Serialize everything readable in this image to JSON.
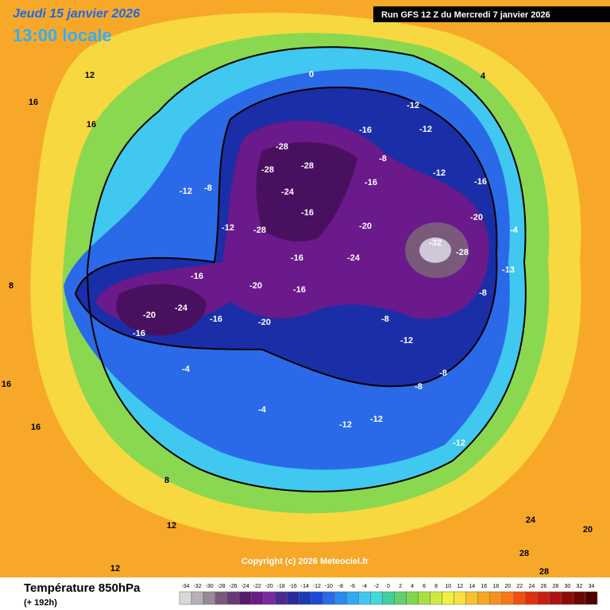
{
  "header": {
    "date": "Jeudi 15 janvier 2026",
    "time": "13:00 locale",
    "run": "Run GFS 12 Z du Mercredi 7 janvier 2026"
  },
  "footer": {
    "title": "Température 850hPa",
    "lead": "(+ 192h)",
    "copyright": "Copyright (c) 2026 Meteociel.fr"
  },
  "legend": {
    "ticks": [
      -34,
      -32,
      -30,
      -28,
      -26,
      -24,
      -22,
      -20,
      -18,
      -16,
      -14,
      -12,
      -10,
      -8,
      -6,
      -4,
      -2,
      0,
      2,
      4,
      6,
      8,
      10,
      12,
      14,
      16,
      18,
      20,
      22,
      24,
      26,
      28,
      30,
      32,
      34
    ],
    "colors": [
      "#d8d8d8",
      "#b8b0b8",
      "#988898",
      "#7a5a7a",
      "#6a3a78",
      "#5a1a6a",
      "#6a1a8a",
      "#7a2aa0",
      "#4a2a90",
      "#2a2a9a",
      "#1a3ab8",
      "#1a4ad8",
      "#2a6ae8",
      "#2a8af0",
      "#30aaf0",
      "#40c8f0",
      "#40d8d8",
      "#40d0a0",
      "#60d070",
      "#80d850",
      "#a8e040",
      "#d0e840",
      "#f0f040",
      "#f8e040",
      "#f8c030",
      "#f8a820",
      "#f89020",
      "#f87818",
      "#f05010",
      "#e03010",
      "#c82010",
      "#b01010",
      "#900808",
      "#700505",
      "#500000"
    ]
  },
  "labels": [
    -28,
    -28,
    -28,
    -28,
    -24,
    -16,
    -16,
    -16,
    -24,
    -20,
    -32,
    -28,
    -20,
    -16,
    -12,
    -12,
    -16,
    -16,
    -8,
    -12,
    -24,
    -20,
    -16,
    -16,
    -16,
    -12,
    -8,
    -12,
    -20,
    -20,
    -8,
    -12,
    -8,
    -8,
    -4,
    -12,
    -12,
    -12,
    0,
    4,
    8,
    12,
    16,
    16,
    16,
    12,
    20,
    24,
    28,
    28,
    12,
    16,
    8,
    -4,
    -8,
    -4,
    -13
  ]
}
